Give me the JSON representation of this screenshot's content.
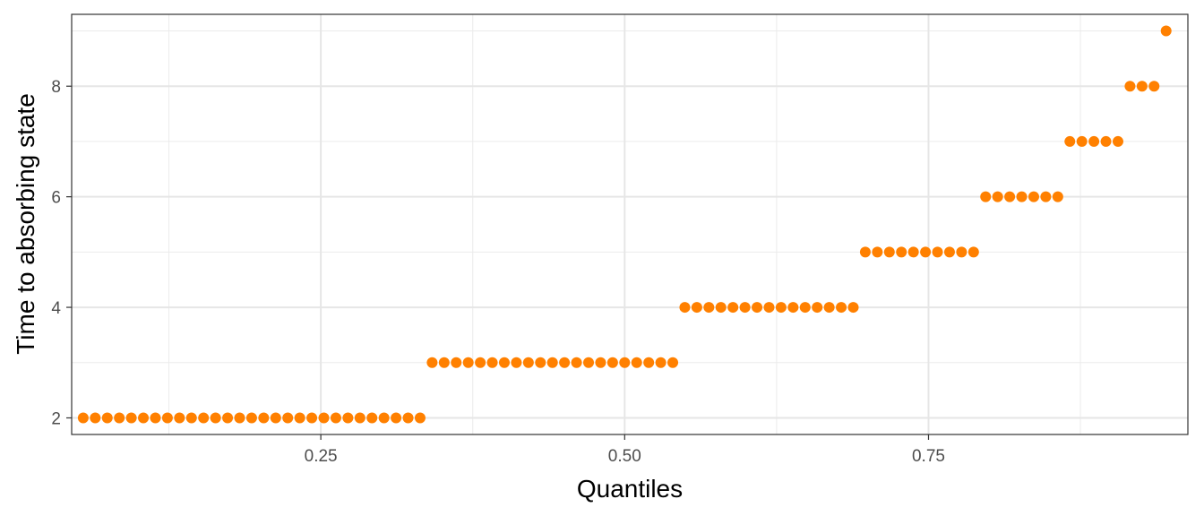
{
  "chart_data": {
    "type": "scatter",
    "title": "",
    "xlabel": "Quantiles",
    "ylabel": "Time to absorbing state",
    "xlim": [
      0.045,
      0.9634
    ],
    "ylim": [
      1.7,
      9.3
    ],
    "x_ticks": [
      "0.25",
      "0.50",
      "0.75"
    ],
    "x_tick_values": [
      0.25,
      0.5,
      0.75
    ],
    "y_ticks": [
      "2",
      "4",
      "6",
      "8"
    ],
    "y_tick_values": [
      2,
      4,
      6,
      8
    ],
    "grid": true,
    "legend": "none",
    "point_color": "#FF8000",
    "series": [
      {
        "x": [
          0.0545,
          0.0644,
          0.0743,
          0.0842,
          0.0941,
          0.104,
          0.1139,
          0.1238,
          0.1337,
          0.1436,
          0.1535,
          0.1634,
          0.1733,
          0.1832,
          0.1931,
          0.203,
          0.2129,
          0.2228,
          0.2327,
          0.2426,
          0.2525,
          0.2624,
          0.2723,
          0.2822,
          0.2921,
          0.302,
          0.3119,
          0.3218,
          0.3317,
          0.3416,
          0.3515,
          0.3614,
          0.3713,
          0.3812,
          0.3911,
          0.401,
          0.4109,
          0.4208,
          0.4307,
          0.4406,
          0.4505,
          0.4604,
          0.4703,
          0.4802,
          0.4901,
          0.5,
          0.5099,
          0.5198,
          0.5297,
          0.5396,
          0.5495,
          0.5594,
          0.5693,
          0.5792,
          0.5891,
          0.599,
          0.6089,
          0.6188,
          0.6287,
          0.6386,
          0.6485,
          0.6584,
          0.6683,
          0.6782,
          0.6881,
          0.698,
          0.7079,
          0.7178,
          0.7277,
          0.7376,
          0.7475,
          0.7574,
          0.7673,
          0.7772,
          0.7871,
          0.797,
          0.8069,
          0.8168,
          0.8267,
          0.8366,
          0.8465,
          0.8564,
          0.8663,
          0.8762,
          0.8861,
          0.896,
          0.9059,
          0.9158,
          0.9257,
          0.9356,
          0.9455
        ],
        "y": [
          2,
          2,
          2,
          2,
          2,
          2,
          2,
          2,
          2,
          2,
          2,
          2,
          2,
          2,
          2,
          2,
          2,
          2,
          2,
          2,
          2,
          2,
          2,
          2,
          2,
          2,
          2,
          2,
          2,
          3,
          3,
          3,
          3,
          3,
          3,
          3,
          3,
          3,
          3,
          3,
          3,
          3,
          3,
          3,
          3,
          3,
          3,
          3,
          3,
          3,
          4,
          4,
          4,
          4,
          4,
          4,
          4,
          4,
          4,
          4,
          4,
          4,
          4,
          4,
          4,
          5,
          5,
          5,
          5,
          5,
          5,
          5,
          5,
          5,
          5,
          6,
          6,
          6,
          6,
          6,
          6,
          6,
          7,
          7,
          7,
          7,
          7,
          8,
          8,
          8,
          9
        ]
      }
    ]
  }
}
